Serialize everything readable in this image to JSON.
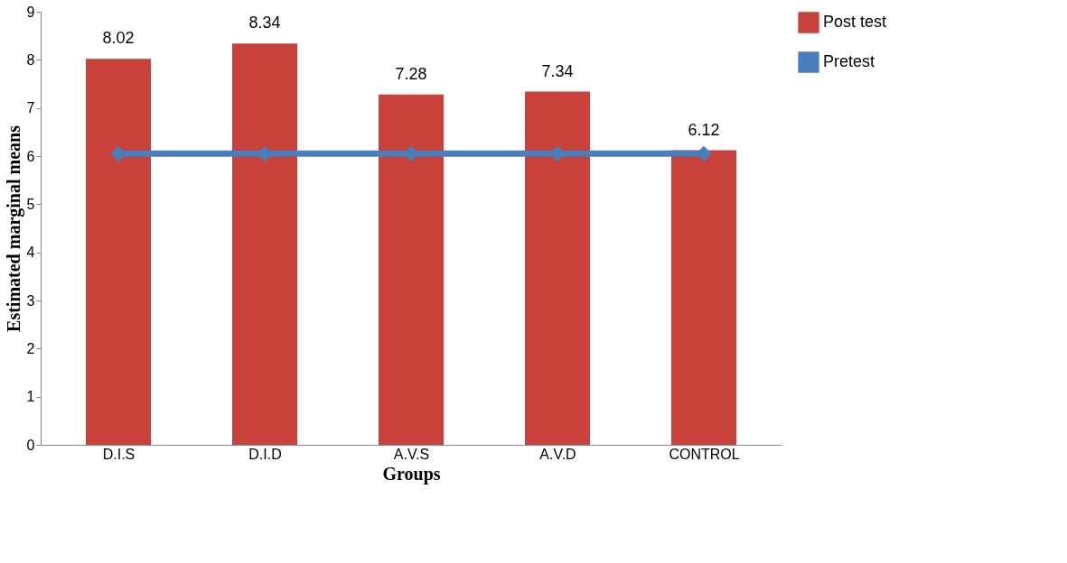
{
  "chart_data": {
    "type": "bar",
    "xlabel": "Groups",
    "ylabel": "Estimated marginal means",
    "categories": [
      "D.I.S",
      "D.I.D",
      "A.V.S",
      "A.V.D",
      "CONTROL"
    ],
    "series": [
      {
        "name": "Post test",
        "color": "#c9413b",
        "values": [
          8.02,
          8.34,
          7.28,
          7.34,
          6.12
        ],
        "value_labels": [
          "8.02",
          "8.34",
          "7.28",
          "7.34",
          "6.12"
        ]
      },
      {
        "name": "Pretest",
        "type": "line",
        "color": "#4a7ebb",
        "values": [
          6.05,
          6.05,
          6.05,
          6.05,
          6.05
        ],
        "marker": "diamond"
      }
    ],
    "ylim": [
      0,
      9
    ],
    "yticks": [
      0,
      1,
      2,
      3,
      4,
      5,
      6,
      7,
      8,
      9
    ],
    "grid": false,
    "legend": "top right"
  }
}
